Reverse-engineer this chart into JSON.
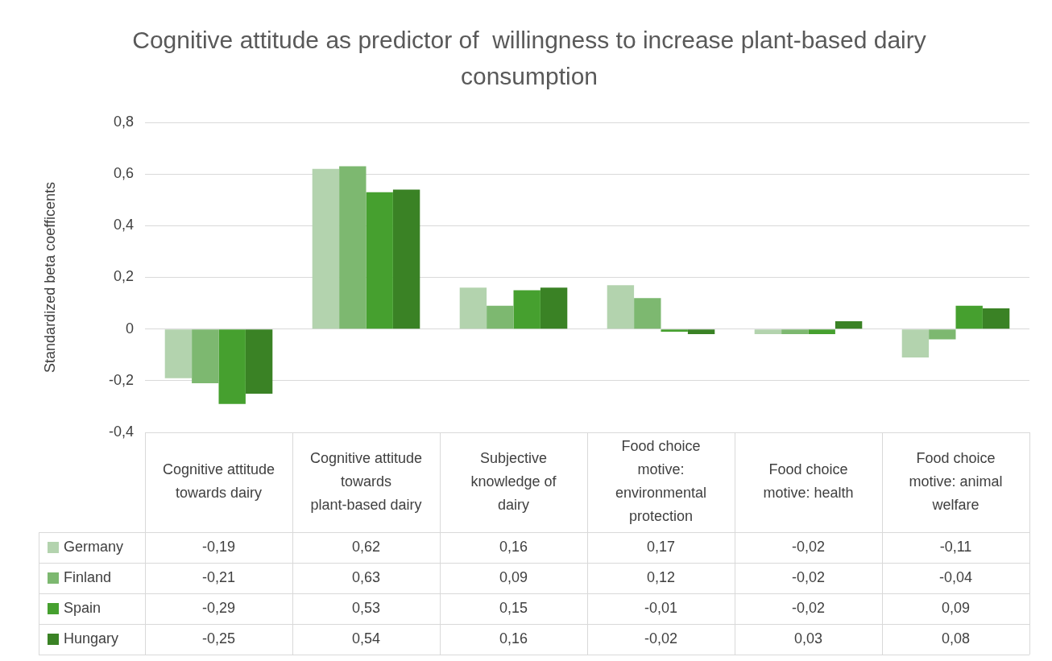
{
  "chart_data": {
    "type": "bar",
    "title": "Cognitive attitude as predictor of  willingness to increase plant-based dairy consumption",
    "ylabel": "Standardized beta coefficents",
    "categories": [
      "Cognitive attitude towards dairy",
      "Cognitive attitude towards plant-based dairy",
      "Subjective knowledge of dairy",
      "Food choice motive: environmental protection",
      "Food choice motive: health",
      "Food choice motive: animal welfare"
    ],
    "series": [
      {
        "name": "Germany",
        "color": "#b3d3ae",
        "values": [
          -0.19,
          0.62,
          0.16,
          0.17,
          -0.02,
          -0.11
        ],
        "value_labels": [
          "-0,19",
          "0,62",
          "0,16",
          "0,17",
          "-0,02",
          "-0,11"
        ]
      },
      {
        "name": "Finland",
        "color": "#7db870",
        "values": [
          -0.21,
          0.63,
          0.09,
          0.12,
          -0.02,
          -0.04
        ],
        "value_labels": [
          "-0,21",
          "0,63",
          "0,09",
          "0,12",
          "-0,02",
          "-0,04"
        ]
      },
      {
        "name": "Spain",
        "color": "#46a02f",
        "values": [
          -0.29,
          0.53,
          0.15,
          -0.01,
          -0.02,
          0.09
        ],
        "value_labels": [
          "-0,29",
          "0,53",
          "0,15",
          "-0,01",
          "-0,02",
          "0,09"
        ]
      },
      {
        "name": "Hungary",
        "color": "#3a8225",
        "values": [
          -0.25,
          0.54,
          0.16,
          -0.02,
          0.03,
          0.08
        ],
        "value_labels": [
          "-0,25",
          "0,54",
          "0,16",
          "-0,02",
          "0,03",
          "0,08"
        ]
      }
    ],
    "ylim": [
      -0.4,
      0.8
    ],
    "yticks": [
      {
        "value": -0.4,
        "label": "-0,4"
      },
      {
        "value": -0.2,
        "label": "-0,2"
      },
      0,
      {
        "value": 0.2,
        "label": "0,2"
      },
      {
        "value": 0.4,
        "label": "0,4"
      },
      {
        "value": 0.6,
        "label": "0,6"
      },
      {
        "value": 0.8,
        "label": "0,8"
      }
    ],
    "grid": "y",
    "legend": "bottom"
  }
}
